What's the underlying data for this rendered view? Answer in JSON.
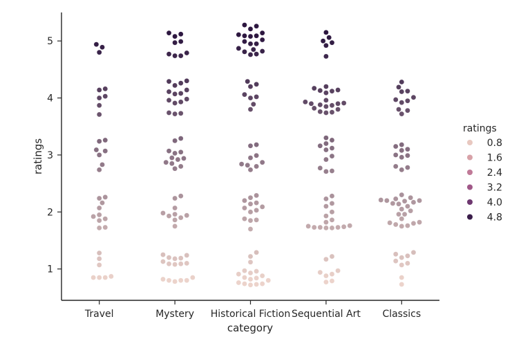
{
  "chart_data": {
    "type": "scatter",
    "subtype": "swarm",
    "xlabel": "category",
    "ylabel": "ratings",
    "categories": [
      "Travel",
      "Mystery",
      "Historical Fiction",
      "Sequential Art",
      "Classics"
    ],
    "ylim": [
      0.45,
      5.5
    ],
    "yticks": [
      1,
      2,
      3,
      4,
      5
    ],
    "grid": false,
    "legend": {
      "title": "ratings",
      "placement": "right",
      "entries": [
        {
          "label": "0.8",
          "color": "#e8c8c0"
        },
        {
          "label": "1.6",
          "color": "#d8a2a8"
        },
        {
          "label": "2.4",
          "color": "#c07a98"
        },
        {
          "label": "3.2",
          "color": "#a05888"
        },
        {
          "label": "4.0",
          "color": "#6e3870"
        },
        {
          "label": "4.8",
          "color": "#3a1d4a"
        }
      ]
    },
    "color_scale": {
      "min": 0.8,
      "max": 5.1,
      "low": "#ecd3cb",
      "high": "#2d1740"
    },
    "series": [
      {
        "category": "Travel",
        "values": [
          0.85,
          0.85,
          0.85,
          0.87,
          1.07,
          1.18,
          1.28,
          1.72,
          1.73,
          1.85,
          1.88,
          1.92,
          1.95,
          2.07,
          2.16,
          2.24,
          2.26,
          2.74,
          2.83,
          3.0,
          3.07,
          3.09,
          3.24,
          3.26,
          3.71,
          3.87,
          4.0,
          4.03,
          4.14,
          4.16,
          4.8,
          4.89,
          4.94
        ]
      },
      {
        "category": "Mystery",
        "values": [
          0.78,
          0.8,
          0.8,
          0.8,
          0.82,
          0.85,
          1.08,
          1.09,
          1.09,
          1.1,
          1.13,
          1.18,
          1.19,
          1.2,
          1.24,
          1.25,
          1.75,
          1.86,
          1.9,
          1.93,
          1.94,
          1.96,
          1.98,
          2.07,
          2.24,
          2.28,
          2.76,
          2.8,
          2.85,
          2.87,
          2.92,
          2.94,
          2.95,
          3.03,
          3.05,
          3.07,
          3.25,
          3.29,
          3.72,
          3.73,
          3.74,
          3.91,
          3.93,
          3.96,
          3.98,
          4.07,
          4.08,
          4.11,
          4.14,
          4.22,
          4.26,
          4.29,
          4.3,
          4.74,
          4.74,
          4.77,
          4.79,
          4.97,
          4.99,
          5.08,
          5.12,
          5.14
        ]
      },
      {
        "category": "Historical Fiction",
        "values": [
          0.72,
          0.73,
          0.74,
          0.74,
          0.76,
          0.8,
          0.82,
          0.84,
          0.85,
          0.88,
          0.91,
          0.93,
          0.96,
          0.97,
          1.12,
          1.22,
          1.29,
          1.7,
          1.85,
          1.86,
          1.88,
          2.0,
          2.03,
          2.07,
          2.09,
          2.14,
          2.16,
          2.2,
          2.25,
          2.29,
          2.74,
          2.8,
          2.82,
          2.84,
          2.87,
          2.95,
          2.99,
          3.16,
          3.18,
          3.8,
          3.89,
          4.0,
          4.02,
          4.06,
          4.2,
          4.24,
          4.29,
          4.76,
          4.77,
          4.81,
          4.82,
          4.85,
          4.87,
          4.95,
          4.95,
          4.99,
          5.02,
          5.08,
          5.09,
          5.09,
          5.11,
          5.14,
          5.21,
          5.26,
          5.28
        ]
      },
      {
        "category": "Sequential Art",
        "values": [
          0.77,
          0.79,
          0.88,
          0.91,
          0.94,
          0.97,
          1.17,
          1.22,
          1.72,
          1.72,
          1.73,
          1.73,
          1.73,
          1.74,
          1.75,
          1.76,
          1.82,
          1.86,
          1.93,
          2.0,
          2.1,
          2.15,
          2.23,
          2.28,
          2.71,
          2.72,
          2.77,
          2.92,
          2.98,
          3.09,
          3.12,
          3.16,
          3.2,
          3.26,
          3.3,
          3.74,
          3.75,
          3.76,
          3.8,
          3.82,
          3.85,
          3.87,
          3.88,
          3.9,
          3.9,
          3.91,
          3.93,
          3.96,
          4.09,
          4.12,
          4.13,
          4.14,
          4.17,
          4.2,
          4.73,
          4.92,
          4.97,
          5.0,
          5.06,
          5.15
        ]
      },
      {
        "category": "Classics",
        "values": [
          0.73,
          0.85,
          1.07,
          1.1,
          1.14,
          1.2,
          1.23,
          1.26,
          1.29,
          1.75,
          1.76,
          1.78,
          1.8,
          1.81,
          1.82,
          1.88,
          1.96,
          1.96,
          2.02,
          2.05,
          2.1,
          2.14,
          2.15,
          2.17,
          2.19,
          2.2,
          2.2,
          2.21,
          2.23,
          2.25,
          2.3,
          2.74,
          2.78,
          2.8,
          2.96,
          2.99,
          3.0,
          3.08,
          3.1,
          3.15,
          3.18,
          3.72,
          3.78,
          3.8,
          3.92,
          3.95,
          3.97,
          4.01,
          4.11,
          4.12,
          4.19,
          4.28
        ]
      }
    ]
  }
}
